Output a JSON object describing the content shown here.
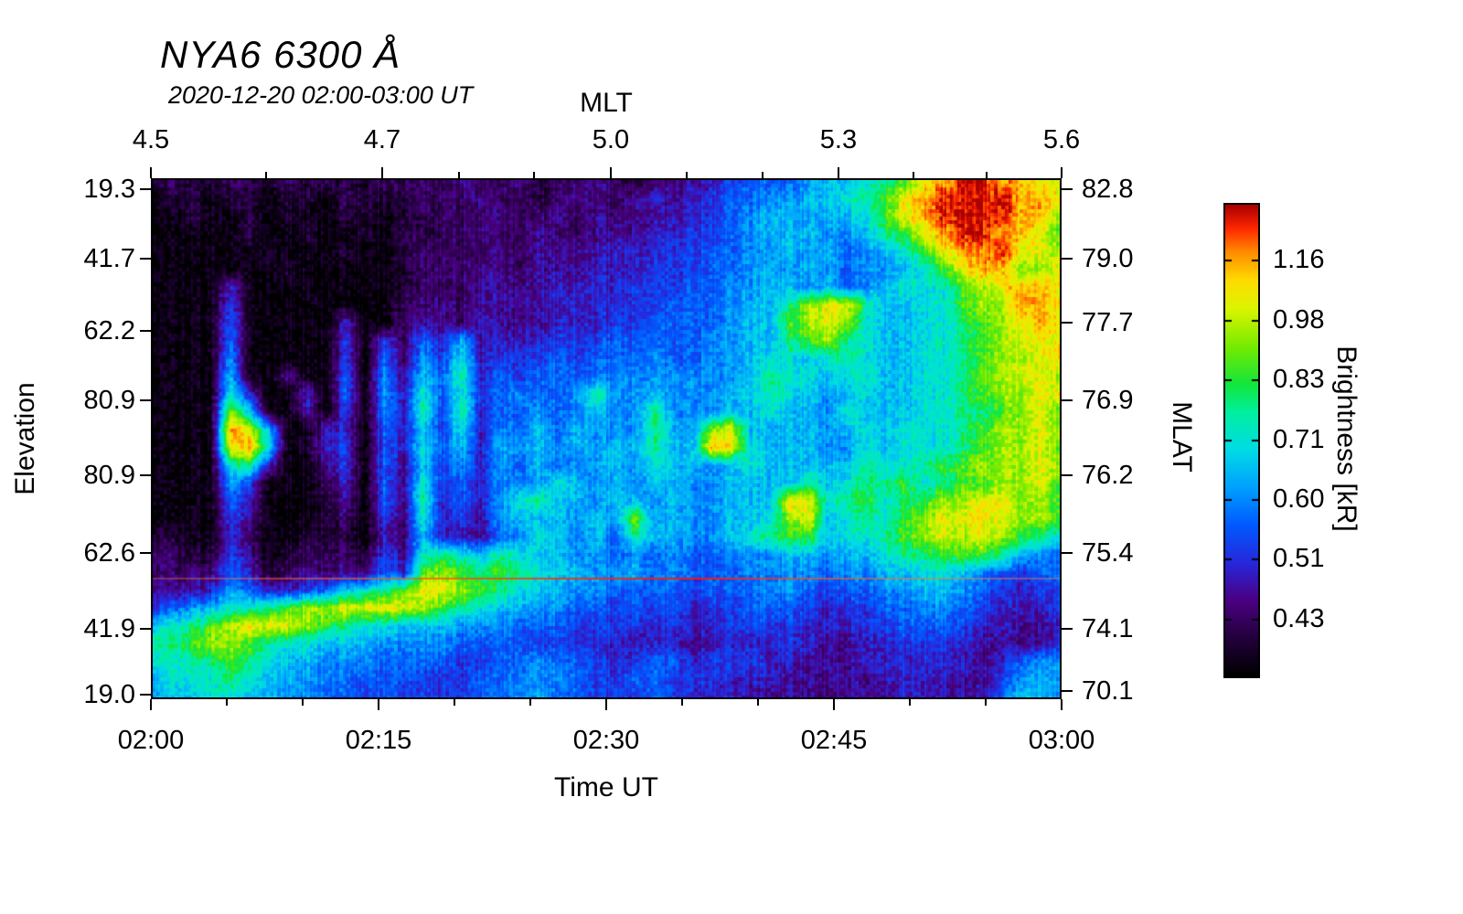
{
  "chart_data": {
    "type": "heatmap",
    "title": "NYA6 6300 Å",
    "subtitle": "2020-12-20 02:00-03:00 UT",
    "axes": {
      "top": {
        "label": "MLT",
        "ticks": [
          {
            "label": "4.5",
            "f": 0.0
          },
          {
            "label": "4.7",
            "f": 0.254
          },
          {
            "label": "5.0",
            "f": 0.505
          },
          {
            "label": "5.3",
            "f": 0.755
          },
          {
            "label": "5.6",
            "f": 1.0
          }
        ],
        "minor_f": [
          0.127,
          0.338,
          0.421,
          0.588,
          0.672,
          0.837,
          0.918
        ]
      },
      "bottom": {
        "label": "Time UT",
        "ticks": [
          {
            "label": "02:00",
            "f": 0.0
          },
          {
            "label": "02:15",
            "f": 0.25
          },
          {
            "label": "02:30",
            "f": 0.5
          },
          {
            "label": "02:45",
            "f": 0.75
          },
          {
            "label": "03:00",
            "f": 1.0
          }
        ],
        "minor_f": [
          0.0833,
          0.1667,
          0.3333,
          0.4167,
          0.5833,
          0.6667,
          0.8333,
          0.9167
        ]
      },
      "left": {
        "label": "Elevation",
        "ticks": [
          {
            "label": "19.3",
            "f": 0.021
          },
          {
            "label": "41.7",
            "f": 0.154
          },
          {
            "label": "62.2",
            "f": 0.293
          },
          {
            "label": "80.9",
            "f": 0.426
          },
          {
            "label": "80.9",
            "f": 0.57
          },
          {
            "label": "62.6",
            "f": 0.719
          },
          {
            "label": "41.9",
            "f": 0.865
          },
          {
            "label": "19.0",
            "f": 0.991
          }
        ]
      },
      "right": {
        "label": "MLAT",
        "ticks": [
          {
            "label": "82.8",
            "f": 0.021
          },
          {
            "label": "79.0",
            "f": 0.154
          },
          {
            "label": "77.7",
            "f": 0.278
          },
          {
            "label": "76.9",
            "f": 0.426
          },
          {
            "label": "76.2",
            "f": 0.57
          },
          {
            "label": "75.4",
            "f": 0.719
          },
          {
            "label": "74.1",
            "f": 0.865
          },
          {
            "label": "70.1",
            "f": 0.985
          }
        ]
      }
    },
    "colorbar": {
      "label": "Brightness [kR]",
      "tick_labels": [
        "1.16",
        "0.98",
        "0.83",
        "0.71",
        "0.60",
        "0.51",
        "0.43"
      ],
      "first_f": 0.117,
      "step_f": 0.1267,
      "vmin": 0.3,
      "vmax": 1.35
    },
    "colormap_stops": [
      [
        0.0,
        0,
        0,
        0
      ],
      [
        0.08,
        35,
        0,
        60
      ],
      [
        0.16,
        75,
        0,
        130
      ],
      [
        0.24,
        40,
        40,
        220
      ],
      [
        0.32,
        0,
        90,
        255
      ],
      [
        0.4,
        0,
        160,
        255
      ],
      [
        0.48,
        0,
        220,
        230
      ],
      [
        0.56,
        0,
        240,
        160
      ],
      [
        0.62,
        20,
        230,
        60
      ],
      [
        0.7,
        120,
        235,
        0
      ],
      [
        0.78,
        220,
        245,
        0
      ],
      [
        0.84,
        255,
        220,
        0
      ],
      [
        0.9,
        255,
        140,
        0
      ],
      [
        0.95,
        255,
        40,
        0
      ],
      [
        1.0,
        170,
        0,
        0
      ]
    ],
    "grid": {
      "cols": 48,
      "rows": 30,
      "encoding": "0123456789abcdef",
      "values": [
        0.32,
        0.38,
        0.43,
        0.48,
        0.53,
        0.58,
        0.64,
        0.7,
        0.76,
        0.83,
        0.9,
        0.98,
        1.06,
        1.14,
        1.22,
        1.32
      ],
      "cells": [
        "12112112121122213223122321233456667889abdeffeedd",
        "0110110110211122232212322343456677889abdeffffeed",
        "00100101001101122232232323344567887889bdeffffeec",
        "00000100100102122322322333445567888778abdeffeedb",
        "0000001000100122223233334445566778786789bdeefddc",
        "00000001000001222332333444555667878767789bdeeccd",
        "000040000000012223333444455566778878678999bcdeed",
        "000050000000022323333444555666788acdda8899bcceed",
        "000060000040023324333444556666788bcdc98899abcded",
        "000060000050526483444555666667788abca98899abcddd",
        "000070000050627594555656667667789989a98899abccdd",
        "0000800300607386a465666677777778a998998899abcddc",
        "00009400406074969567667a77877788a987898899abccdd",
        "0000c800405074a5a466767877a777889887988899aabcdb",
        "0000ed80044064859476868777a87cd88887898999abccdc",
        "0000de90145064968487878788a88ed98887798999abccdb",
        "00009a4003506385747686778798878988888a99abbcccdc",
        "0000750002406395647779878788778888a89aab9abbccdb",
        "00006400013063a46479a887887877888dd9ab9abccddccb",
        "0000530001205294537888787c7877889cd89a9bcddddccb",
        "1100420011104284436798786a887789abb899abcdcdcba9",
        "221153012221539a98a98877676766777887889aabbba876",
        "22226412323264bcbaba9887786766677776778899876566",
        "333476445689abddcba98877666656667765667788765455",
        "567899abccddddcba9887766565645566654556677654445",
        "89abcdddcba9988877766655554544555544455666544334",
        "aabccba99888777766665554444434444543344555433334",
        "99aaba988777666655667665456645554433344454434677",
        "8999a9887766665556677765566555444333334444335787",
        "788998877665655556677665556544433332333443336887"
      ]
    },
    "artifact_line": {
      "f_y": 0.768,
      "color": "#ff4400"
    }
  }
}
